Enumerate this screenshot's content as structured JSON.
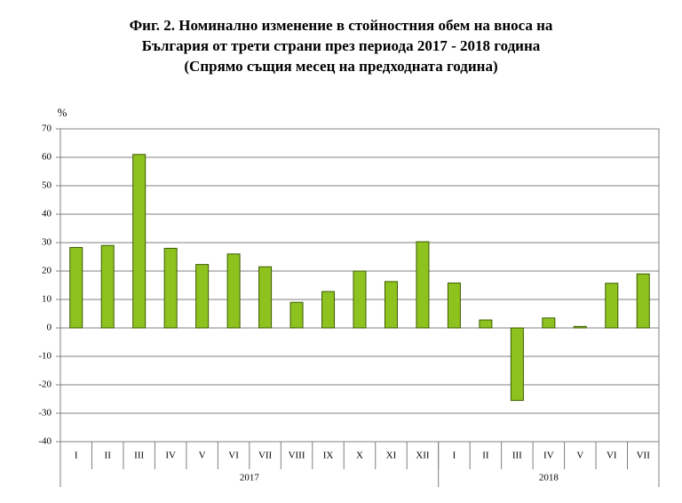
{
  "chart_data": {
    "type": "bar",
    "title": [
      "Фиг. 2. Номинално изменение в стойностния обем на вноса на",
      "България от трети страни през периода 2017 - 2018 година",
      "(Спрямо същия месец на предходната година)"
    ],
    "y_label": "%",
    "groups": [
      {
        "label": "2017",
        "categories": [
          "I",
          "II",
          "III",
          "IV",
          "V",
          "VI",
          "VII",
          "VIII",
          "IX",
          "X",
          "XI",
          "XII"
        ],
        "values": [
          28.3,
          29,
          61,
          28,
          22.3,
          26,
          21.5,
          9,
          12.8,
          20,
          16.3,
          30.3
        ]
      },
      {
        "label": "2018",
        "categories": [
          "I",
          "II",
          "III",
          "IV",
          "V",
          "VI",
          "VII"
        ],
        "values": [
          15.8,
          2.8,
          -25.5,
          3.5,
          0.5,
          15.7,
          19
        ]
      }
    ],
    "color": "#8dc21f",
    "edge_color": "#3d5c00",
    "ylim": [
      -40,
      70
    ],
    "yticks": [
      -40,
      -30,
      -20,
      -10,
      0,
      10,
      20,
      30,
      40,
      50,
      60,
      70
    ],
    "grid": true
  }
}
